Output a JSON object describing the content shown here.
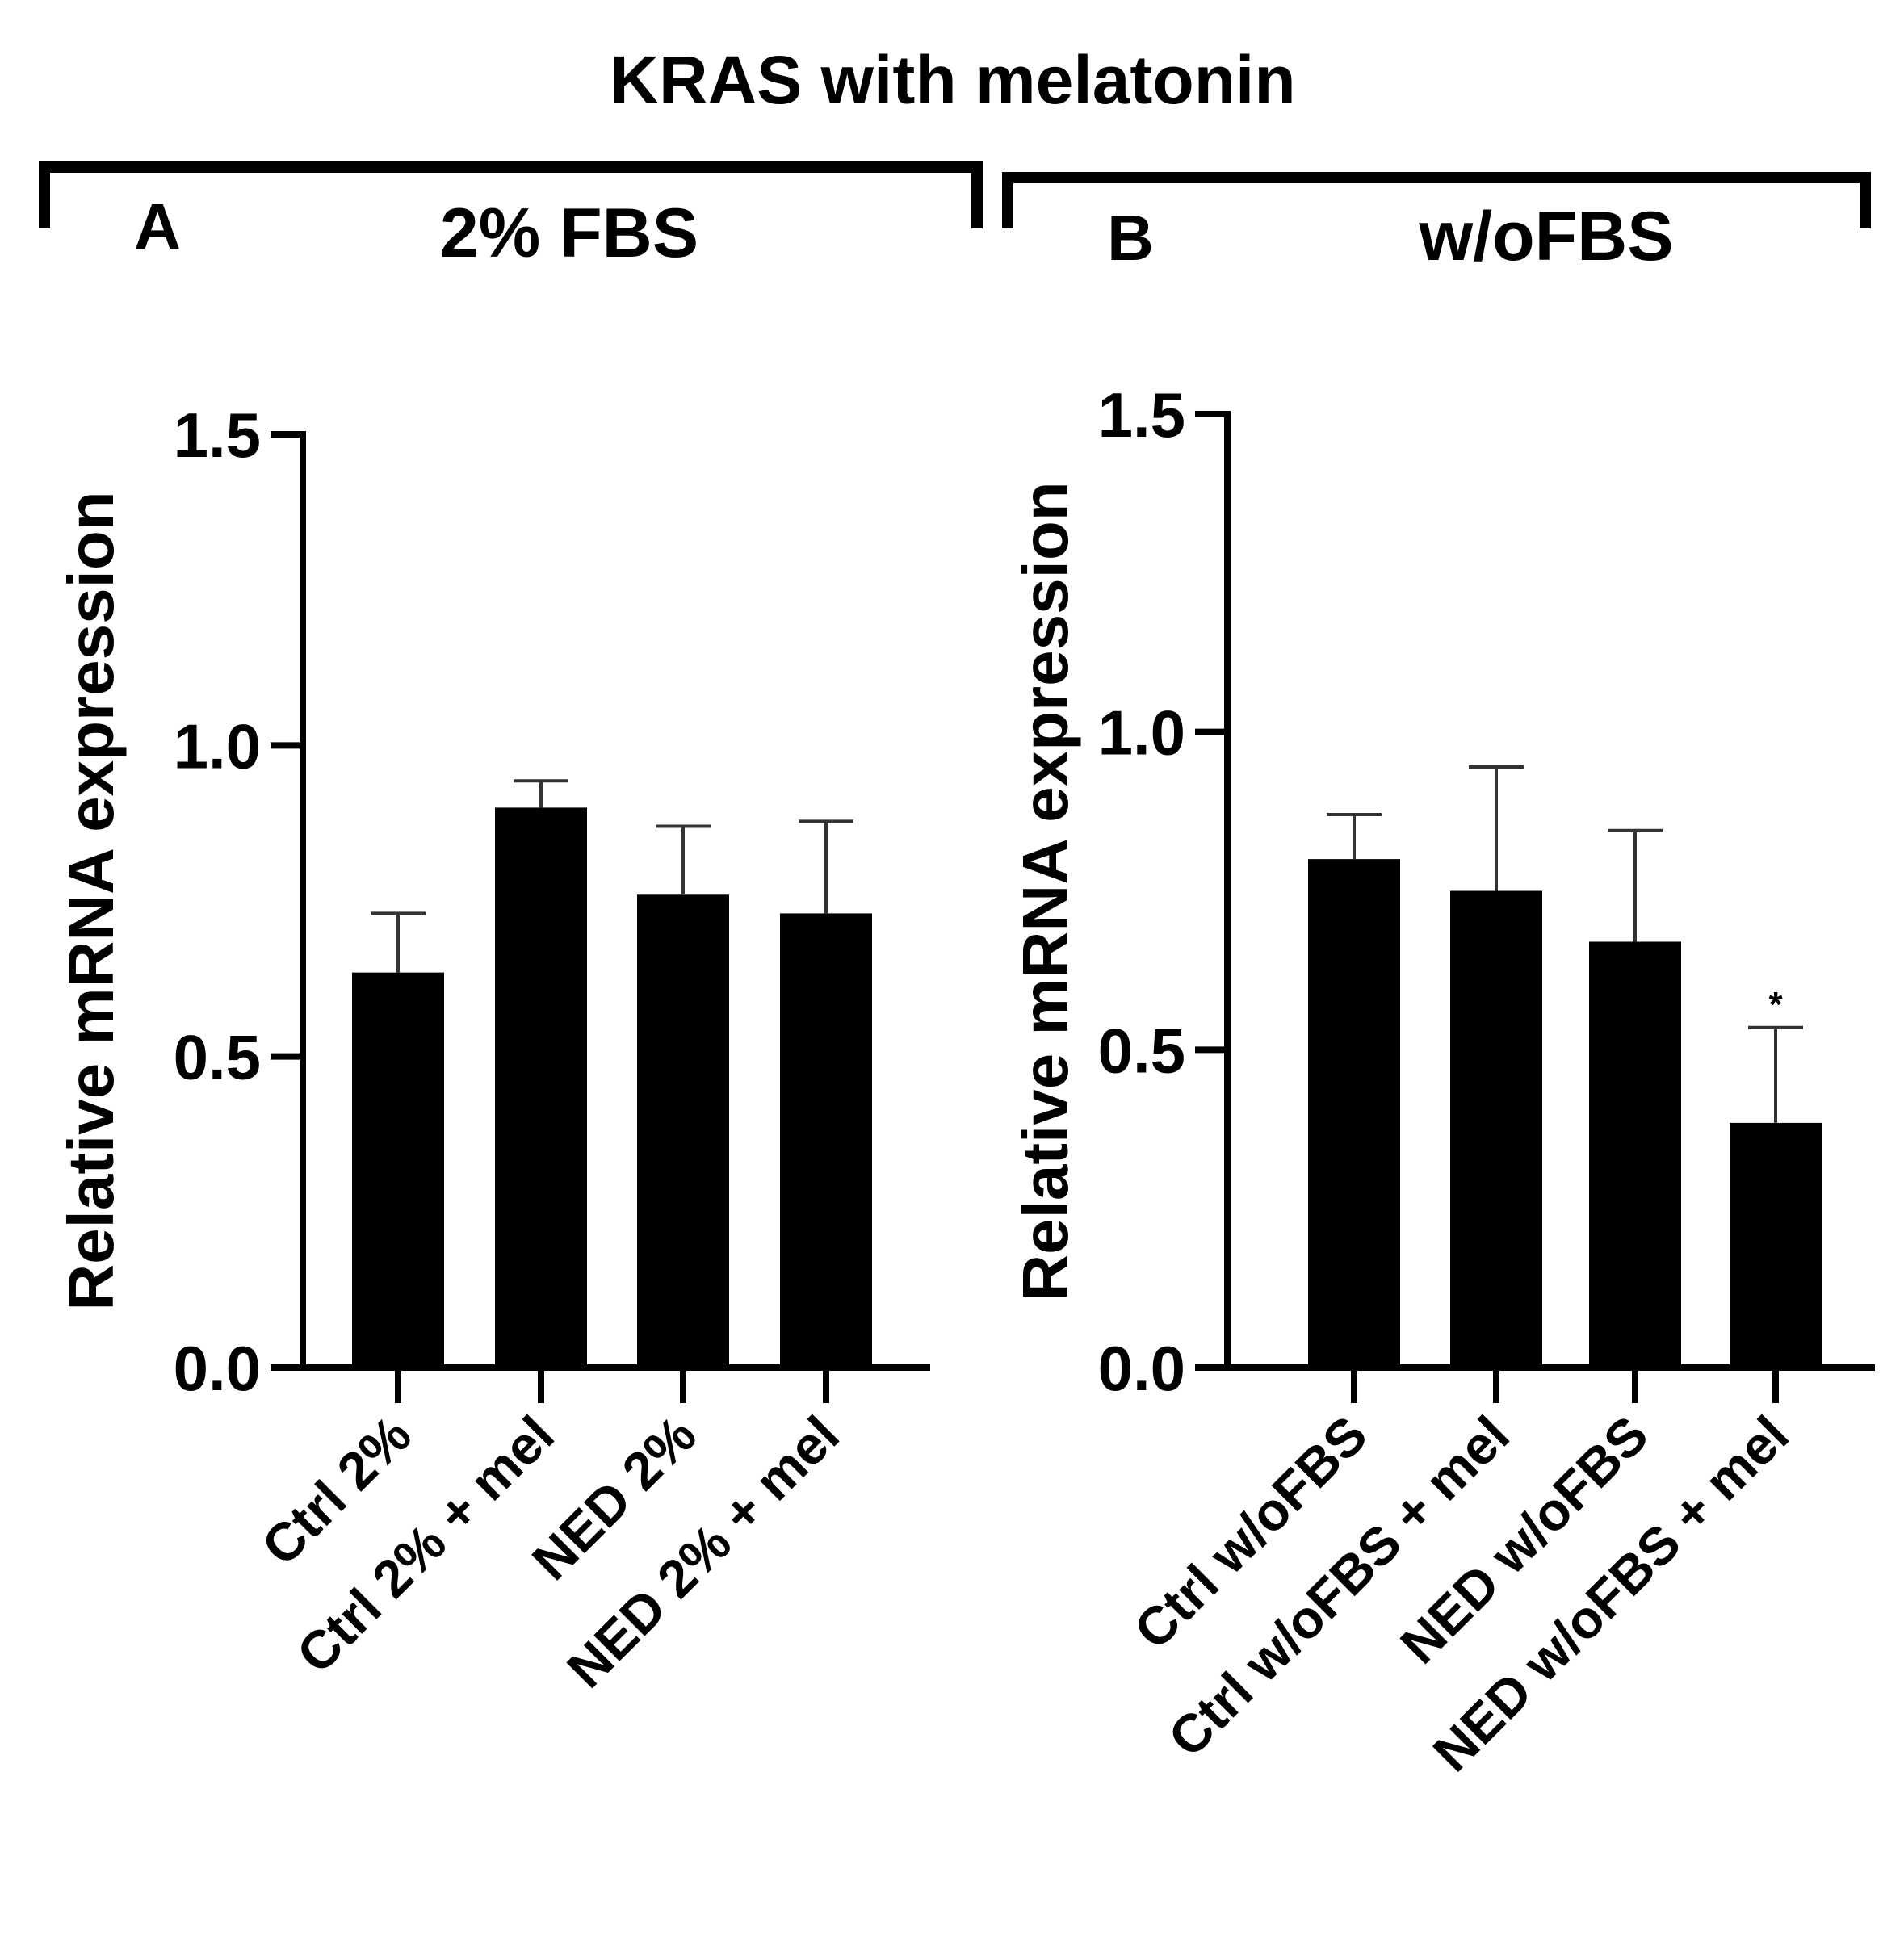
{
  "figure": {
    "title": "KRAS with melatonin",
    "colors": {
      "bar": "#000000",
      "axis": "#000000",
      "background": "#ffffff"
    }
  },
  "panels": [
    {
      "letter": "A",
      "condition": "2% FBS"
    },
    {
      "letter": "B",
      "condition": "w/oFBS"
    }
  ],
  "chart_data": [
    {
      "type": "bar",
      "panel": "A",
      "title": "2% FBS",
      "ylabel": "Relative mRNA expression",
      "xlabel": "",
      "ylim": [
        0,
        1.5
      ],
      "yticks": [
        "0.0",
        "0.5",
        "1.0",
        "1.5"
      ],
      "categories": [
        "Ctrl 2%",
        "Ctrl 2% + mel",
        "NED 2%",
        "NED 2% + mel"
      ],
      "values": [
        0.635,
        0.9,
        0.76,
        0.73
      ],
      "error": [
        0.095,
        0.043,
        0.11,
        0.148
      ],
      "annotations": [
        "",
        "",
        "",
        ""
      ],
      "grid": false
    },
    {
      "type": "bar",
      "panel": "B",
      "title": "w/oFBS",
      "ylabel": "Relative mRNA expression",
      "xlabel": "",
      "ylim": [
        0,
        1.5
      ],
      "yticks": [
        "0.0",
        "0.5",
        "1.0",
        "1.5"
      ],
      "categories": [
        "Ctrl w/oFBS",
        "Ctrl w/oFBS + mel",
        "NED w/oFBS",
        "NED w/oFBS + mel"
      ],
      "values": [
        0.8,
        0.75,
        0.67,
        0.385
      ],
      "error": [
        0.07,
        0.195,
        0.175,
        0.15
      ],
      "annotations": [
        "",
        "",
        "",
        "*"
      ],
      "grid": false
    }
  ]
}
